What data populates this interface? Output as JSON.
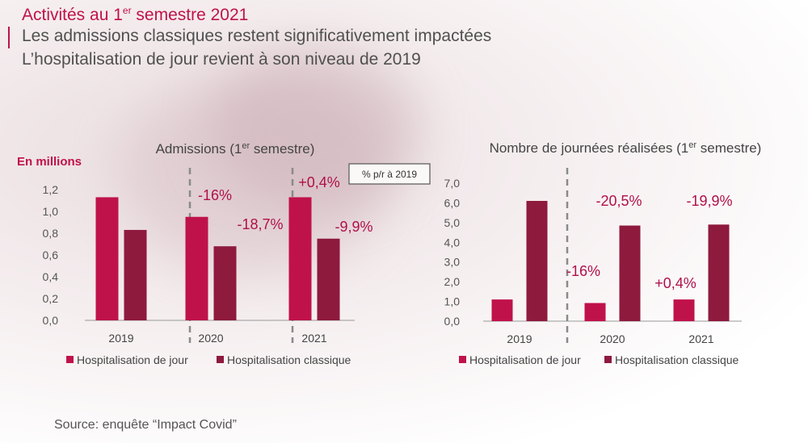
{
  "header": {
    "title_main": "Activités au 1",
    "title_sup": "er",
    "title_rest": " semestre 2021",
    "subtitle_1": "Les admissions classiques restent significativement impactées",
    "subtitle_2": "L’hospitalisation de jour revient à son niveau de 2019"
  },
  "source": "Source: enquête “Impact Covid”",
  "colors": {
    "jour": "#c0124a",
    "classique": "#8e1a3e",
    "pct": "#b0104a",
    "axis": "#555555"
  },
  "chart_data": [
    {
      "type": "bar",
      "title": "Admissions (1er semestre)",
      "title_parts": [
        "Admissions (1",
        "er",
        " semestre)"
      ],
      "ylabel": "En millions",
      "note_box": "% p/r à 2019",
      "categories": [
        "2019",
        "2020",
        "2021"
      ],
      "ylim": [
        0,
        1.2
      ],
      "yticks": [
        0,
        0.2,
        0.4,
        0.6,
        0.8,
        1.0,
        1.2
      ],
      "ytick_labels": [
        "0,0",
        "0,2",
        "0,4",
        "0,6",
        "0,8",
        "1,0",
        "1,2"
      ],
      "series": [
        {
          "name": "Hospitalisation de jour",
          "values": [
            1.13,
            0.95,
            1.13
          ],
          "labels": [
            "",
            "-16%",
            "+0,4%"
          ]
        },
        {
          "name": "Hospitalisation classique",
          "values": [
            0.83,
            0.68,
            0.75
          ],
          "labels": [
            "",
            "-18,7%",
            "-9,9%"
          ]
        }
      ]
    },
    {
      "type": "bar",
      "title": "Nombre de journées réalisées (1er semestre)",
      "title_parts": [
        "Nombre de journées réalisées (1",
        "er",
        " semestre)"
      ],
      "categories": [
        "2019",
        "2020",
        "2021"
      ],
      "ylim": [
        0,
        7.0
      ],
      "yticks": [
        0,
        1,
        2,
        3,
        4,
        5,
        6,
        7
      ],
      "ytick_labels": [
        "0,0",
        "1,0",
        "2,0",
        "3,0",
        "4,0",
        "5,0",
        "6,0",
        "7,0"
      ],
      "series": [
        {
          "name": "Hospitalisation de jour",
          "values": [
            1.1,
            0.92,
            1.1
          ],
          "labels": [
            "",
            "-16%",
            "+0,4%"
          ]
        },
        {
          "name": "Hospitalisation classique",
          "values": [
            6.1,
            4.85,
            4.9
          ],
          "labels": [
            "",
            "-20,5%",
            "-19,9%"
          ]
        }
      ]
    }
  ]
}
